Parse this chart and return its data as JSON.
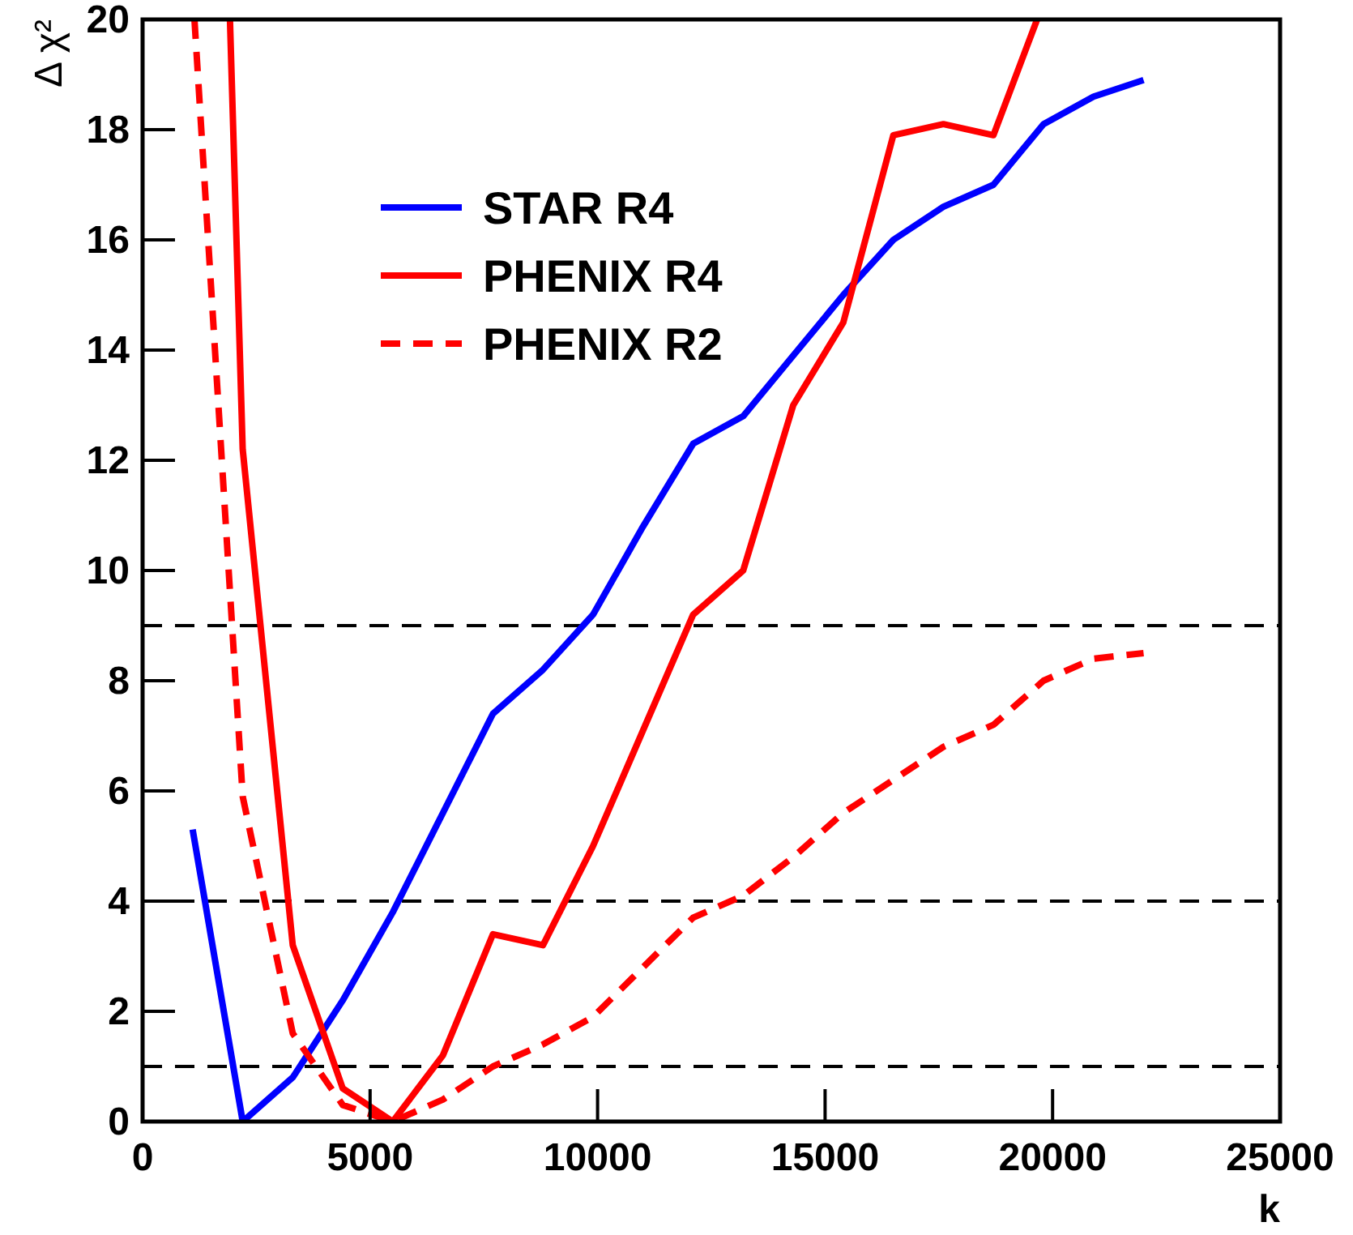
{
  "chart_data": {
    "type": "line",
    "xlabel": "k",
    "ylabel": "Δ χ²",
    "xlim": [
      0,
      25000
    ],
    "ylim": [
      0,
      20
    ],
    "xticks": [
      0,
      5000,
      10000,
      15000,
      20000,
      25000
    ],
    "yticks": [
      0,
      2,
      4,
      6,
      8,
      10,
      12,
      14,
      16,
      18,
      20
    ],
    "grid": false,
    "legend": "top left",
    "marker": "none",
    "ref_lines": [
      {
        "axis": "y",
        "value": 1,
        "color": "#000000",
        "line_style": "dashed"
      },
      {
        "axis": "y",
        "value": 4,
        "color": "#000000",
        "line_style": "dashed"
      },
      {
        "axis": "y",
        "value": 9,
        "color": "#000000",
        "line_style": "dashed"
      }
    ],
    "series": [
      {
        "name": "STAR R4",
        "color": "#0000ff",
        "line_style": "solid",
        "x": [
          1100,
          2200,
          3300,
          4400,
          5500,
          6600,
          7700,
          8800,
          9900,
          11000,
          12100,
          13200,
          14300,
          15400,
          16500,
          17600,
          18700,
          19800,
          20900,
          22000
        ],
        "values": [
          5.3,
          0,
          0.8,
          2.2,
          3.8,
          5.6,
          7.4,
          8.2,
          9.2,
          10.8,
          12.3,
          12.8,
          13.9,
          15.0,
          16.0,
          16.6,
          17.0,
          18.1,
          18.6,
          18.9
        ]
      },
      {
        "name": "PHENIX R4",
        "color": "#ff0000",
        "line_style": "solid",
        "x": [
          1920,
          2200,
          3300,
          4400,
          5500,
          6600,
          7700,
          8800,
          9900,
          11000,
          12100,
          13200,
          14300,
          15400,
          16500,
          17600,
          18700,
          19660
        ],
        "values": [
          20,
          12.2,
          3.2,
          0.6,
          0,
          1.2,
          3.4,
          3.2,
          5.0,
          7.1,
          9.2,
          10.0,
          13.0,
          14.5,
          17.9,
          18.1,
          17.9,
          20
        ]
      },
      {
        "name": "PHENIX R2",
        "color": "#ff0000",
        "line_style": "dashed",
        "x": [
          1140,
          2200,
          3300,
          4400,
          5500,
          6600,
          7700,
          8800,
          9900,
          11000,
          12100,
          13200,
          14300,
          15400,
          16500,
          17600,
          18700,
          19800,
          20900,
          22000
        ],
        "values": [
          20,
          5.9,
          1.6,
          0.3,
          0,
          0.4,
          1.0,
          1.4,
          1.9,
          2.8,
          3.7,
          4.1,
          4.8,
          5.6,
          6.2,
          6.8,
          7.2,
          8.0,
          8.4,
          8.5
        ]
      }
    ]
  }
}
